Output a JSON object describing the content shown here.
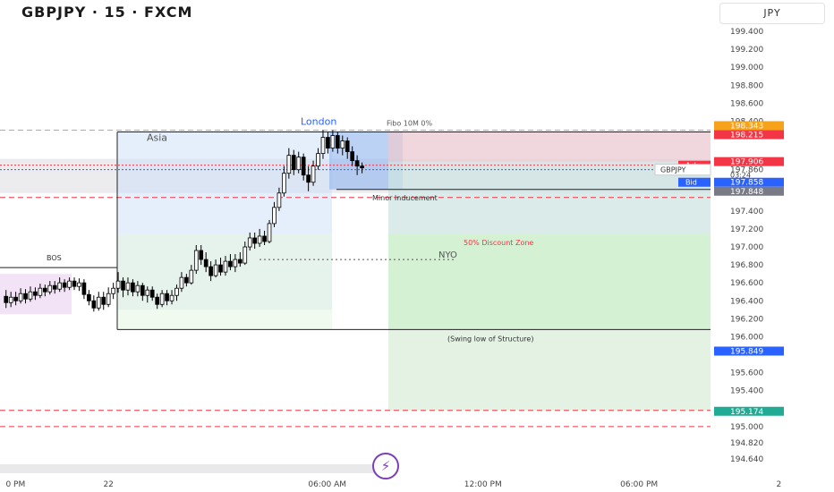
{
  "header": {
    "title": "GBPJPY · 15 · FXCM",
    "currency_label": "JPY"
  },
  "colors": {
    "candle": "#000000",
    "ask": "#f23645",
    "bid": "#2962ff",
    "fibo_orange": "#f7a21b",
    "price_tag_red": "#f23645",
    "price_tag_gray": "#787b86",
    "price_tag_blue": "#2962ff",
    "price_tag_green": "#22ab94",
    "bolt": "#7b3fb5"
  },
  "icons": {
    "replay": "lightning-icon"
  },
  "chart_data": {
    "type": "candlestick",
    "symbol": "GBPJPY",
    "ylim": [
      194.55,
      199.55
    ],
    "y_ticks": [
      {
        "value": 199.4,
        "label": "199.400"
      },
      {
        "value": 199.2,
        "label": "199.200"
      },
      {
        "value": 199.0,
        "label": "199.000"
      },
      {
        "value": 198.8,
        "label": "198.800"
      },
      {
        "value": 198.6,
        "label": "198.600"
      },
      {
        "value": 198.4,
        "label": "198.400"
      },
      {
        "value": 197.86,
        "label": "197.860"
      },
      {
        "value": 197.4,
        "label": "197.400"
      },
      {
        "value": 197.2,
        "label": "197.200"
      },
      {
        "value": 197.0,
        "label": "197.000"
      },
      {
        "value": 196.8,
        "label": "196.800"
      },
      {
        "value": 196.6,
        "label": "196.600"
      },
      {
        "value": 196.4,
        "label": "196.400"
      },
      {
        "value": 196.2,
        "label": "196.200"
      },
      {
        "value": 196.0,
        "label": "196.000"
      },
      {
        "value": 195.6,
        "label": "195.600"
      },
      {
        "value": 195.4,
        "label": "195.400"
      },
      {
        "value": 195.0,
        "label": "195.000"
      },
      {
        "value": 194.82,
        "label": "194.820"
      },
      {
        "value": 194.64,
        "label": "194.640"
      }
    ],
    "x_ticks": [
      {
        "label": "0 PM",
        "bar": 1
      },
      {
        "label": "22",
        "bar": 21
      },
      {
        "label": "06:00 AM",
        "bar": 63
      },
      {
        "label": "12:00 PM",
        "bar": 95
      },
      {
        "label": "06:00 PM",
        "bar": 127
      },
      {
        "label": "2",
        "bar": 159
      }
    ],
    "price_tags": [
      {
        "label": "198.343",
        "value": 198.35,
        "color": "#f7a21b"
      },
      {
        "label": "198.215",
        "value": 198.25,
        "color": "#f23645"
      },
      {
        "label": "197.906",
        "value": 197.95,
        "color": "#f23645"
      },
      {
        "label": "197.858",
        "value": 197.72,
        "color": "#2962ff"
      },
      {
        "label": "197.848",
        "value": 197.62,
        "color": "#787b86"
      },
      {
        "label": "195.849",
        "value": 195.84,
        "color": "#2962ff"
      },
      {
        "label": "195.174",
        "value": 195.17,
        "color": "#22ab94"
      }
    ],
    "price_side_labels": {
      "ask": "Ask",
      "bid": "Bid",
      "symbol_tag": "GBPJPY",
      "countdown": "03:24"
    },
    "annotations": {
      "london": "London",
      "asia": "Asia",
      "fibo": "Fibo 10M 0%",
      "minor_inducement": "Minor Inducement",
      "discount_zone": "50% Discount Zone",
      "nyo": "NYO",
      "swing_low": "(Swing low of Structure)",
      "bos": "BOS"
    },
    "levels": {
      "fibo_top": 198.3,
      "ask": 197.91,
      "bid": 197.86,
      "asia_high": 198.28,
      "bos": 196.77,
      "nyo": 196.86,
      "minor_inducement": 197.64,
      "swing_low": 196.08,
      "discount_top": 197.14,
      "red_dash_upper": 197.55,
      "red_dash_lower1": 195.18,
      "red_dash_lower2": 195.0,
      "fibo_bottom": 195.18
    },
    "candles": [
      [
        196.45,
        196.38,
        196.52,
        196.32
      ],
      [
        196.38,
        196.44,
        196.5,
        196.33
      ],
      [
        196.44,
        196.4,
        196.5,
        196.35
      ],
      [
        196.4,
        196.48,
        196.54,
        196.37
      ],
      [
        196.48,
        196.42,
        196.53,
        196.37
      ],
      [
        196.42,
        196.5,
        196.56,
        196.39
      ],
      [
        196.5,
        196.46,
        196.55,
        196.41
      ],
      [
        196.46,
        196.54,
        196.59,
        196.43
      ],
      [
        196.54,
        196.5,
        196.58,
        196.45
      ],
      [
        196.5,
        196.57,
        196.62,
        196.47
      ],
      [
        196.57,
        196.53,
        196.62,
        196.48
      ],
      [
        196.53,
        196.6,
        196.66,
        196.5
      ],
      [
        196.6,
        196.55,
        196.64,
        196.5
      ],
      [
        196.55,
        196.62,
        196.66,
        196.52
      ],
      [
        196.62,
        196.56,
        196.66,
        196.52
      ],
      [
        196.56,
        196.6,
        196.65,
        196.51
      ],
      [
        196.6,
        196.47,
        196.64,
        196.42
      ],
      [
        196.47,
        196.4,
        196.52,
        196.35
      ],
      [
        196.4,
        196.32,
        196.46,
        196.28
      ],
      [
        196.32,
        196.44,
        196.5,
        196.29
      ],
      [
        196.44,
        196.36,
        196.5,
        196.3
      ],
      [
        196.36,
        196.48,
        196.55,
        196.33
      ],
      [
        196.48,
        196.54,
        196.6,
        196.42
      ],
      [
        196.54,
        196.62,
        196.72,
        196.49
      ],
      [
        196.62,
        196.52,
        196.66,
        196.44
      ],
      [
        196.52,
        196.6,
        196.66,
        196.46
      ],
      [
        196.6,
        196.5,
        196.64,
        196.45
      ],
      [
        196.5,
        196.57,
        196.62,
        196.45
      ],
      [
        196.57,
        196.46,
        196.6,
        196.4
      ],
      [
        196.46,
        196.52,
        196.56,
        196.38
      ],
      [
        196.52,
        196.44,
        196.56,
        196.4
      ],
      [
        196.44,
        196.36,
        196.48,
        196.31
      ],
      [
        196.36,
        196.48,
        196.52,
        196.33
      ],
      [
        196.48,
        196.4,
        196.52,
        196.35
      ],
      [
        196.4,
        196.46,
        196.52,
        196.36
      ],
      [
        196.46,
        196.54,
        196.58,
        196.4
      ],
      [
        196.54,
        196.66,
        196.72,
        196.5
      ],
      [
        196.66,
        196.6,
        196.7,
        196.56
      ],
      [
        196.6,
        196.74,
        196.8,
        196.58
      ],
      [
        196.74,
        196.96,
        197.02,
        196.7
      ],
      [
        196.96,
        196.86,
        197.02,
        196.8
      ],
      [
        196.86,
        196.78,
        196.94,
        196.72
      ],
      [
        196.78,
        196.68,
        196.84,
        196.62
      ],
      [
        196.68,
        196.8,
        196.86,
        196.66
      ],
      [
        196.8,
        196.72,
        196.88,
        196.68
      ],
      [
        196.72,
        196.84,
        196.9,
        196.68
      ],
      [
        196.84,
        196.78,
        196.92,
        196.74
      ],
      [
        196.78,
        196.86,
        196.92,
        196.72
      ],
      [
        196.86,
        196.82,
        196.94,
        196.78
      ],
      [
        196.82,
        197.0,
        197.06,
        196.8
      ],
      [
        197.0,
        197.1,
        197.16,
        196.96
      ],
      [
        197.1,
        197.04,
        197.16,
        196.98
      ],
      [
        197.04,
        197.12,
        197.2,
        197.0
      ],
      [
        197.12,
        197.06,
        197.18,
        197.02
      ],
      [
        197.06,
        197.26,
        197.3,
        197.04
      ],
      [
        197.26,
        197.44,
        197.5,
        197.22
      ],
      [
        197.44,
        197.6,
        197.66,
        197.4
      ],
      [
        197.6,
        197.82,
        197.9,
        197.56
      ],
      [
        197.82,
        198.02,
        198.1,
        197.76
      ],
      [
        198.02,
        197.86,
        198.08,
        197.8
      ],
      [
        197.86,
        198.0,
        198.06,
        197.82
      ],
      [
        198.0,
        197.8,
        198.04,
        197.74
      ],
      [
        197.8,
        197.72,
        197.9,
        197.62
      ],
      [
        197.72,
        197.9,
        197.96,
        197.68
      ],
      [
        197.9,
        198.04,
        198.1,
        197.86
      ],
      [
        198.04,
        198.22,
        198.3,
        197.98
      ],
      [
        198.22,
        198.1,
        198.28,
        198.04
      ],
      [
        198.1,
        198.24,
        198.3,
        198.06
      ],
      [
        198.24,
        198.1,
        198.28,
        198.04
      ],
      [
        198.1,
        198.18,
        198.24,
        198.02
      ],
      [
        198.18,
        198.06,
        198.22,
        197.98
      ],
      [
        198.06,
        197.96,
        198.12,
        197.9
      ],
      [
        197.96,
        197.9,
        198.02,
        197.8
      ],
      [
        197.9,
        197.88,
        197.94,
        197.82
      ]
    ]
  }
}
